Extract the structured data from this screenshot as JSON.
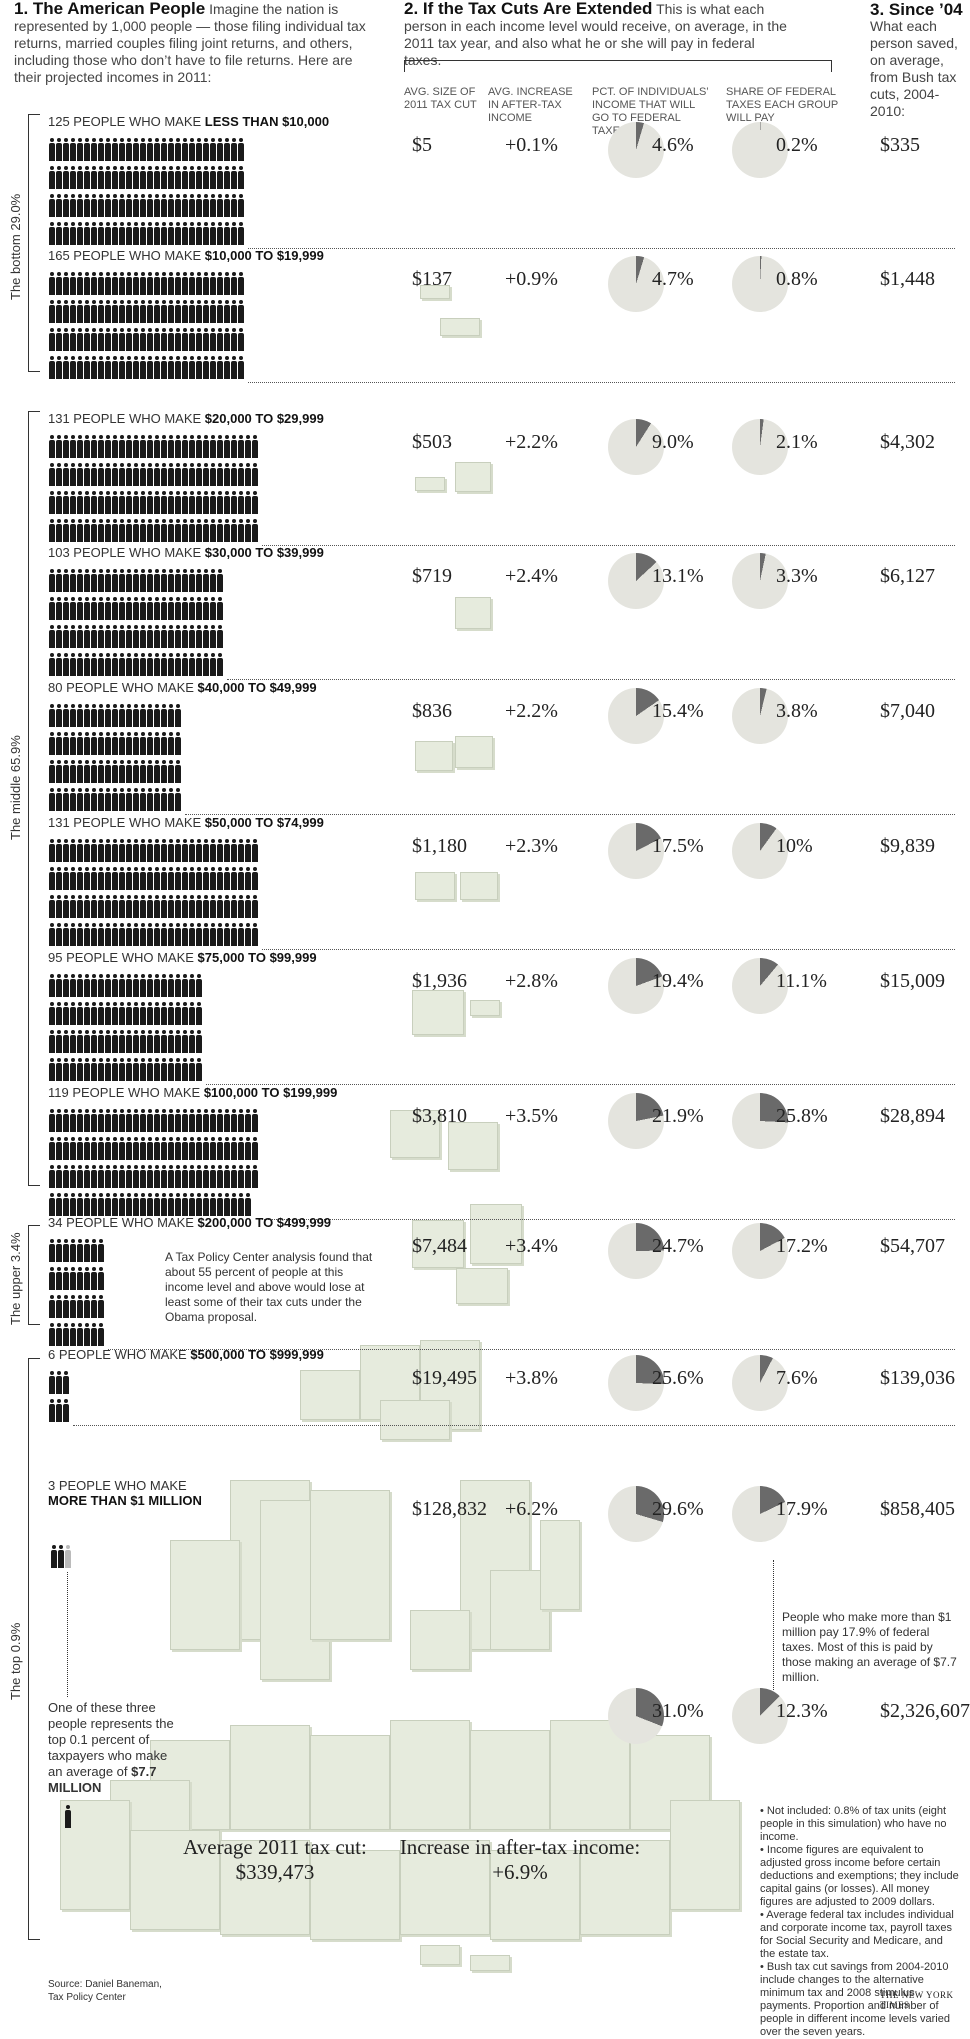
{
  "header": {
    "col1_title": "1. The American People",
    "col1_text": "Imagine the nation is represented by 1,000 people — those filing individual tax returns, married couples filing joint returns, and others, including those who don’t have to file returns. Here are their projected incomes in 2011:",
    "col2_title": "2. If the Tax Cuts Are Extended",
    "col2_text": "This is what each person in each income level would receive, on average, in the 2011 tax year, and also what he or she will pay in federal taxes.",
    "col3_title": "3. Since ’04",
    "col3_text": "What each person saved, on average, from Bush tax cuts, 2004-2010:"
  },
  "column_heads": [
    "AVG. SIZE OF 2011 TAX CUT",
    "AVG. INCREASE IN AFTER-TAX INCOME",
    "PCT. OF INDIVIDUALS’ INCOME THAT WILL GO TO FEDERAL TAXES",
    "SHARE OF FEDERAL TAXES EACH GROUP WILL PAY"
  ],
  "groups": [
    "The bottom 29.0%",
    "The middle 65.9%",
    "The upper 3.4%",
    "The top 0.9%"
  ],
  "rows": [
    {
      "lead": "125 PEOPLE WHO MAKE ",
      "range": "LESS THAN $10,000",
      "tax_cut": "$5",
      "increase": "+0.1%",
      "pct_income": "4.6%",
      "pct_income_v": 4.6,
      "share": "0.2%",
      "share_v": 0.2,
      "since04": "$335"
    },
    {
      "lead": "165 PEOPLE WHO MAKE ",
      "range": "$10,000 TO $19,999",
      "tax_cut": "$137",
      "increase": "+0.9%",
      "pct_income": "4.7%",
      "pct_income_v": 4.7,
      "share": "0.8%",
      "share_v": 0.8,
      "since04": "$1,448"
    },
    {
      "lead": "131 PEOPLE WHO MAKE ",
      "range": "$20,000 TO $29,999",
      "tax_cut": "$503",
      "increase": "+2.2%",
      "pct_income": "9.0%",
      "pct_income_v": 9.0,
      "share": "2.1%",
      "share_v": 2.1,
      "since04": "$4,302"
    },
    {
      "lead": "103 PEOPLE WHO MAKE ",
      "range": "$30,000 TO $39,999",
      "tax_cut": "$719",
      "increase": "+2.4%",
      "pct_income": "13.1%",
      "pct_income_v": 13.1,
      "share": "3.3%",
      "share_v": 3.3,
      "since04": "$6,127"
    },
    {
      "lead": "80 PEOPLE WHO MAKE ",
      "range": "$40,000 TO $49,999",
      "tax_cut": "$836",
      "increase": "+2.2%",
      "pct_income": "15.4%",
      "pct_income_v": 15.4,
      "share": "3.8%",
      "share_v": 3.8,
      "since04": "$7,040"
    },
    {
      "lead": "131 PEOPLE WHO MAKE ",
      "range": "$50,000 TO $74,999",
      "tax_cut": "$1,180",
      "increase": "+2.3%",
      "pct_income": "17.5%",
      "pct_income_v": 17.5,
      "share": "10%",
      "share_v": 10,
      "since04": "$9,839"
    },
    {
      "lead": "95 PEOPLE WHO MAKE ",
      "range": "$75,000 TO $99,999",
      "tax_cut": "$1,936",
      "increase": "+2.8%",
      "pct_income": "19.4%",
      "pct_income_v": 19.4,
      "share": "11.1%",
      "share_v": 11.1,
      "since04": "$15,009"
    },
    {
      "lead": "119 PEOPLE WHO MAKE ",
      "range": "$100,000 TO $199,999",
      "tax_cut": "$3,810",
      "increase": "+3.5%",
      "pct_income": "21.9%",
      "pct_income_v": 21.9,
      "share": "25.8%",
      "share_v": 25.8,
      "since04": "$28,894"
    },
    {
      "lead": "34 PEOPLE WHO MAKE ",
      "range": "$200,000 TO $499,999",
      "tax_cut": "$7,484",
      "increase": "+3.4%",
      "pct_income": "24.7%",
      "pct_income_v": 24.7,
      "share": "17.2%",
      "share_v": 17.2,
      "since04": "$54,707"
    },
    {
      "lead": "6 PEOPLE WHO MAKE ",
      "range": "$500,000 TO $999,999",
      "tax_cut": "$19,495",
      "increase": "+3.8%",
      "pct_income": "25.6%",
      "pct_income_v": 25.6,
      "share": "7.6%",
      "share_v": 7.6,
      "since04": "$139,036"
    },
    {
      "lead": "3 PEOPLE WHO MAKE",
      "range": "MORE THAN $1 MILLION",
      "tax_cut": "$128,832",
      "increase": "+6.2%",
      "pct_income": "29.6%",
      "pct_income_v": 29.6,
      "share": "17.9%",
      "share_v": 17.9,
      "since04": "$858,405"
    },
    {
      "lead": "",
      "range": "",
      "tax_cut": "",
      "increase": "",
      "pct_income": "31.0%",
      "pct_income_v": 31.0,
      "share": "12.3%",
      "share_v": 12.3,
      "since04": "$2,326,607"
    }
  ],
  "people_counts": [
    125,
    165,
    131,
    103,
    80,
    131,
    95,
    119,
    34,
    6,
    3
  ],
  "notes": {
    "tpc": "A Tax Policy Center analysis found that about 55 percent of people at this income level and above would lose at least some of their tax cuts under the Obama proposal.",
    "million": "People who make more than $1 million pay 17.9% of federal taxes. Most of this is paid by those making an average of $7.7 million.",
    "one_of_three_a": "One of these three people represents the top 0.1 percent of taxpayers who make an average of ",
    "one_of_three_b": "$7.7 MILLION",
    "avg_cut_label": "Average 2011 tax cut:",
    "avg_cut_value": "$339,473",
    "increase_label": "Increase in after-tax income:",
    "increase_value": "+6.9%",
    "footnotes": [
      "• Not included: 0.8% of tax units (eight people in this simulation) who have no income.",
      "• Income figures are equivalent to adjusted gross income before certain deductions and exemptions; they include capital gains (or losses). All money figures are adjusted to 2009 dollars.",
      "• Average federal tax includes individual and corporate income tax, payroll taxes for Social Security and Medicare, and the estate tax.",
      "• Bush tax cut savings from 2004-2010 include changes to the alternative minimum tax and 2008 stimulus payments. Proportion and number of people in different income levels varied over the seven years."
    ],
    "source": "Source: Daniel Baneman, Tax Policy Center",
    "credit": "THE NEW YORK TIMES"
  },
  "colors": {
    "pie_bg": "#e4e4de",
    "pie_fill": "#6a6a6a",
    "money": "#e6ebdd"
  }
}
